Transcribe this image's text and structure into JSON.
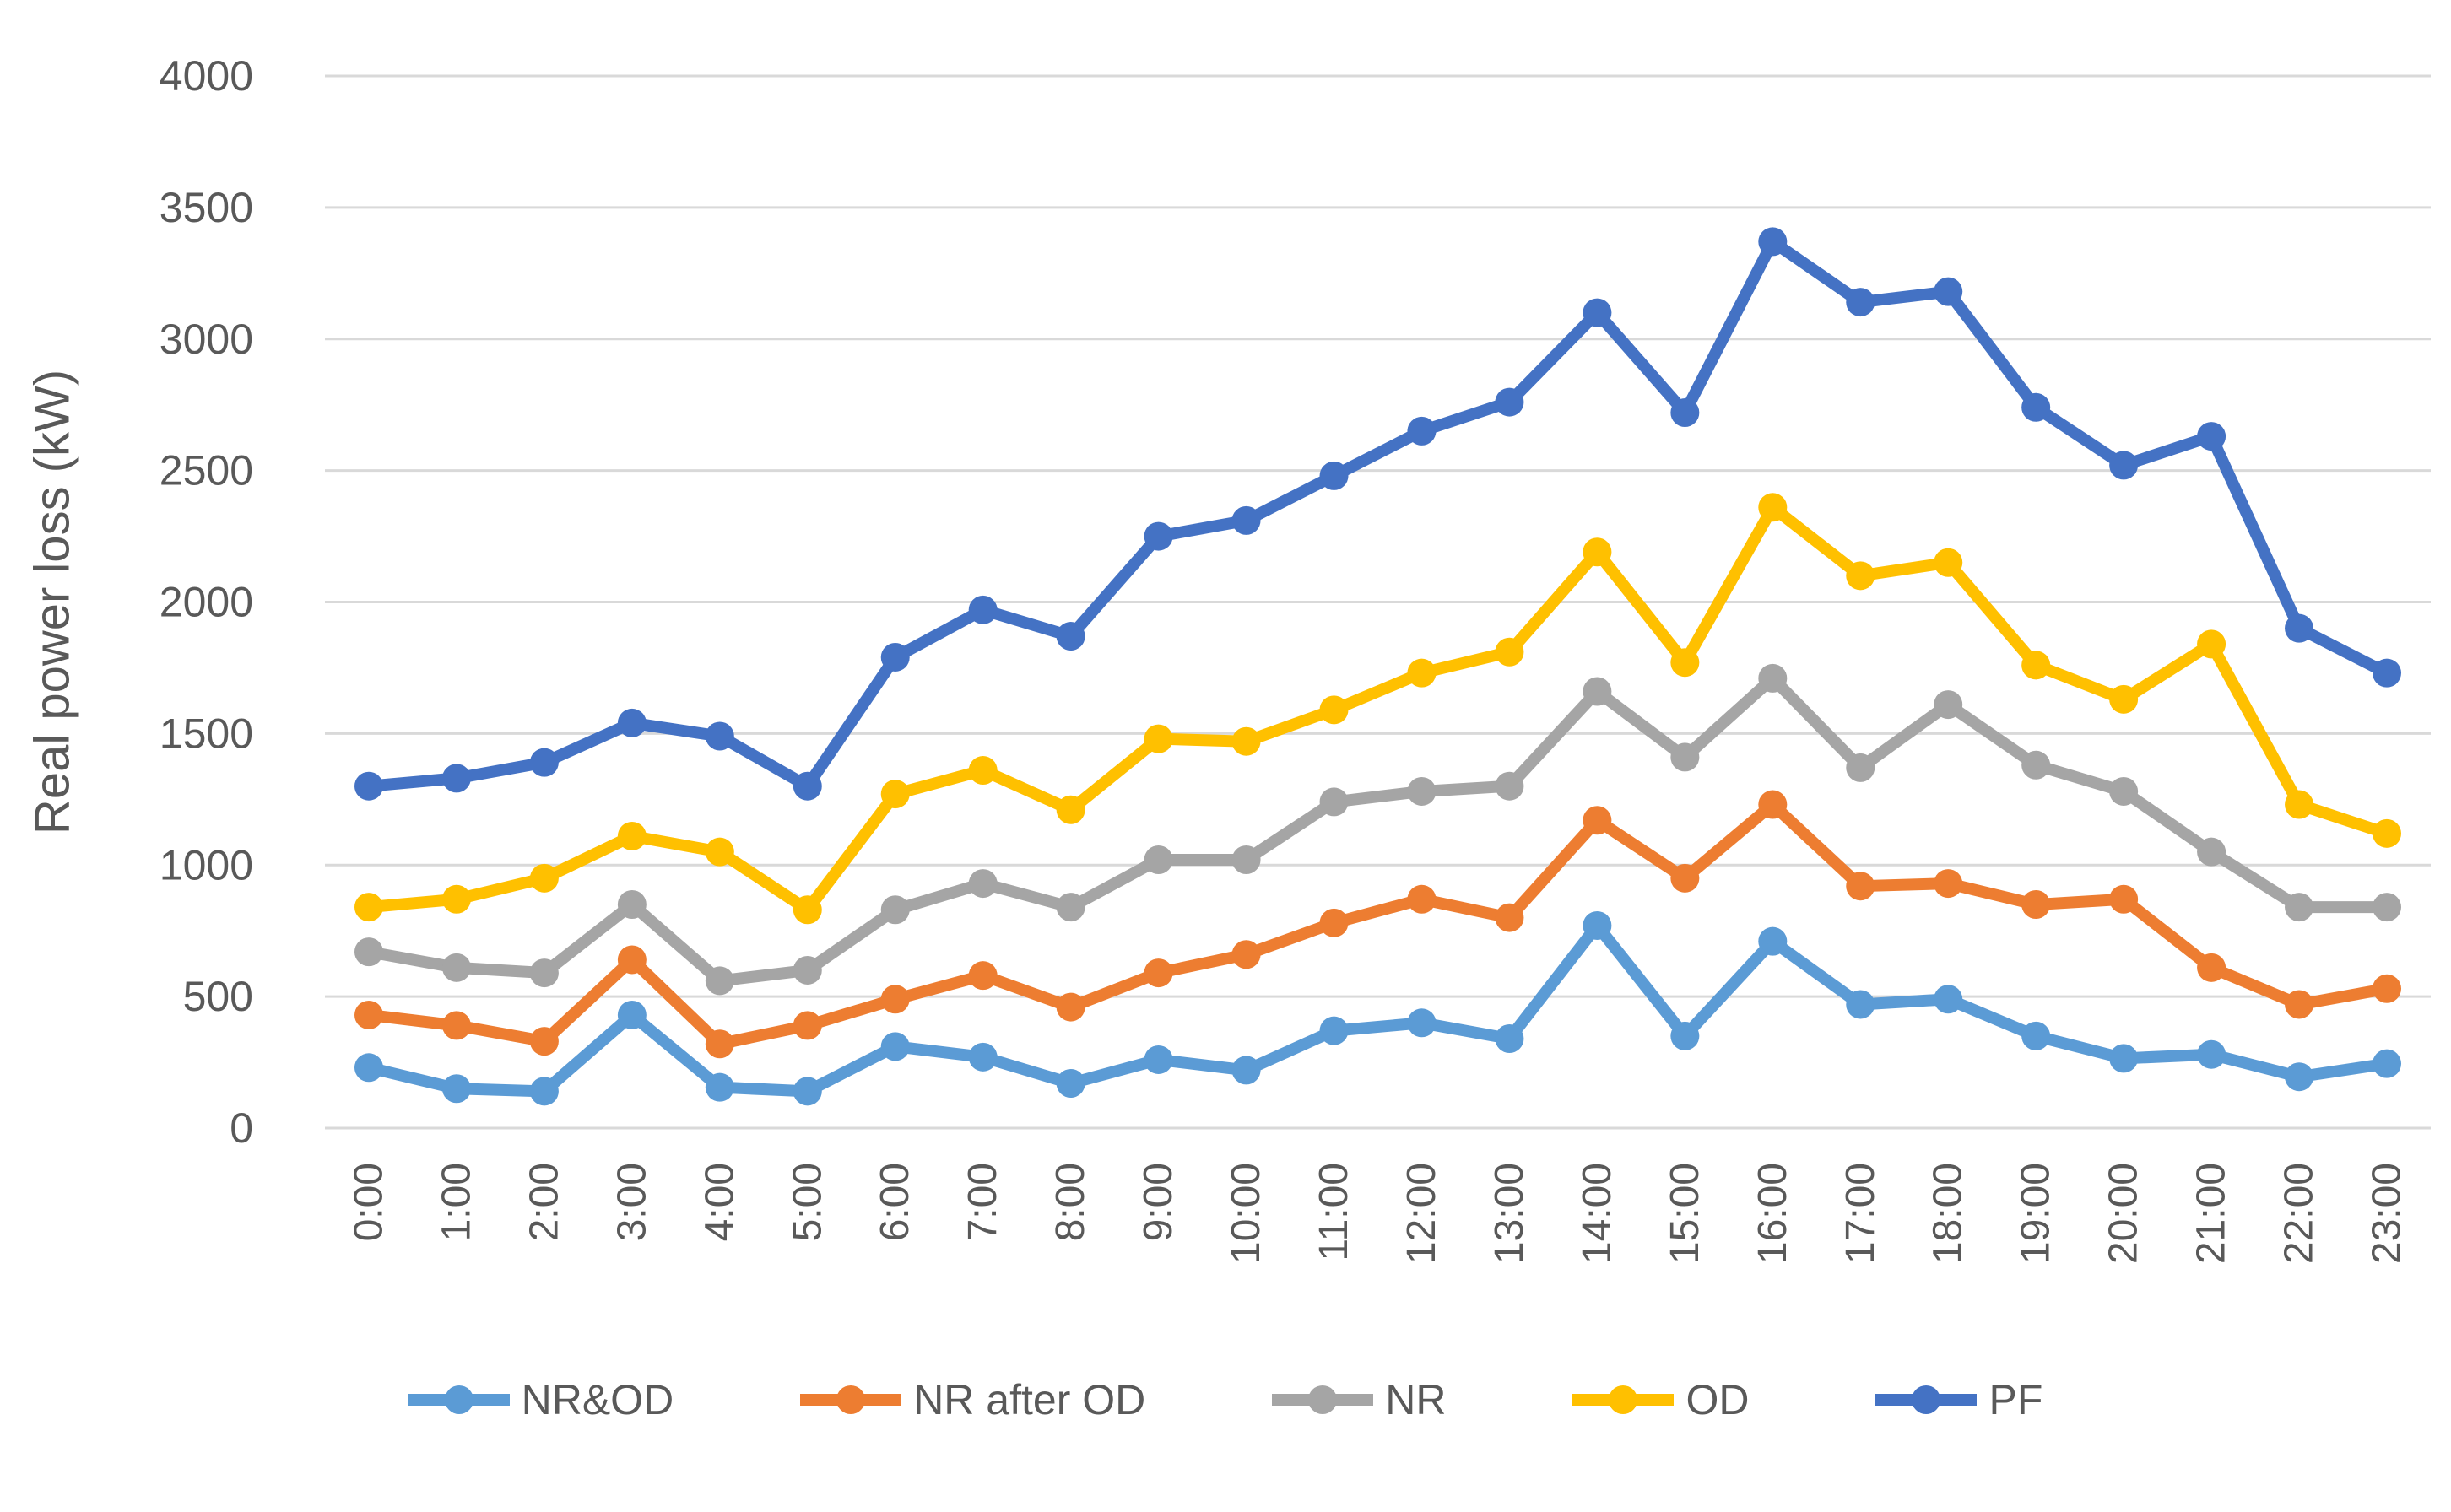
{
  "chart_data": {
    "type": "line",
    "title": "",
    "xlabel": "",
    "ylabel": "Real power loss (kW)",
    "ylim": [
      0,
      4000
    ],
    "ytick_step": 500,
    "grid": true,
    "legend_position": "bottom",
    "marker": "circle",
    "categories": [
      "0:00",
      "1:00",
      "2:00",
      "3:00",
      "4:00",
      "5:00",
      "6:00",
      "7:00",
      "8:00",
      "9:00",
      "10:00",
      "11:00",
      "12:00",
      "13:00",
      "14:00",
      "15:00",
      "16:00",
      "17:00",
      "18:00",
      "19:00",
      "20:00",
      "21:00",
      "22:00",
      "23:00"
    ],
    "series": [
      {
        "name": "NR&OD",
        "color": "#5B9BD5",
        "values": [
          230,
          150,
          140,
          430,
          155,
          140,
          310,
          270,
          170,
          260,
          220,
          370,
          400,
          340,
          770,
          350,
          710,
          470,
          490,
          350,
          265,
          280,
          195,
          245
        ]
      },
      {
        "name": "NR after OD",
        "color": "#ED7D31",
        "values": [
          430,
          390,
          330,
          640,
          320,
          390,
          490,
          580,
          460,
          590,
          660,
          780,
          870,
          800,
          1170,
          950,
          1230,
          920,
          930,
          850,
          870,
          610,
          470,
          530
        ]
      },
      {
        "name": "NR",
        "color": "#A5A5A5",
        "values": [
          670,
          610,
          590,
          850,
          560,
          600,
          830,
          930,
          840,
          1020,
          1020,
          1240,
          1280,
          1300,
          1660,
          1410,
          1710,
          1370,
          1610,
          1380,
          1280,
          1050,
          840,
          840
        ]
      },
      {
        "name": "OD",
        "color": "#FFC000",
        "values": [
          840,
          870,
          950,
          1110,
          1050,
          830,
          1270,
          1360,
          1210,
          1480,
          1470,
          1590,
          1730,
          1810,
          2190,
          1770,
          2360,
          2100,
          2150,
          1760,
          1630,
          1840,
          1230,
          1120
        ]
      },
      {
        "name": "PF",
        "color": "#4472C4",
        "values": [
          1300,
          1330,
          1390,
          1540,
          1490,
          1300,
          1790,
          1970,
          1870,
          2250,
          2310,
          2480,
          2650,
          2760,
          3100,
          2720,
          3370,
          3140,
          3180,
          2740,
          2520,
          2630,
          1900,
          1730
        ]
      }
    ],
    "styles": {
      "gridline_color": "#D9D9D9",
      "text_color": "#595959",
      "background": "#FFFFFF",
      "line_width": 14,
      "marker_radius": 17
    }
  }
}
